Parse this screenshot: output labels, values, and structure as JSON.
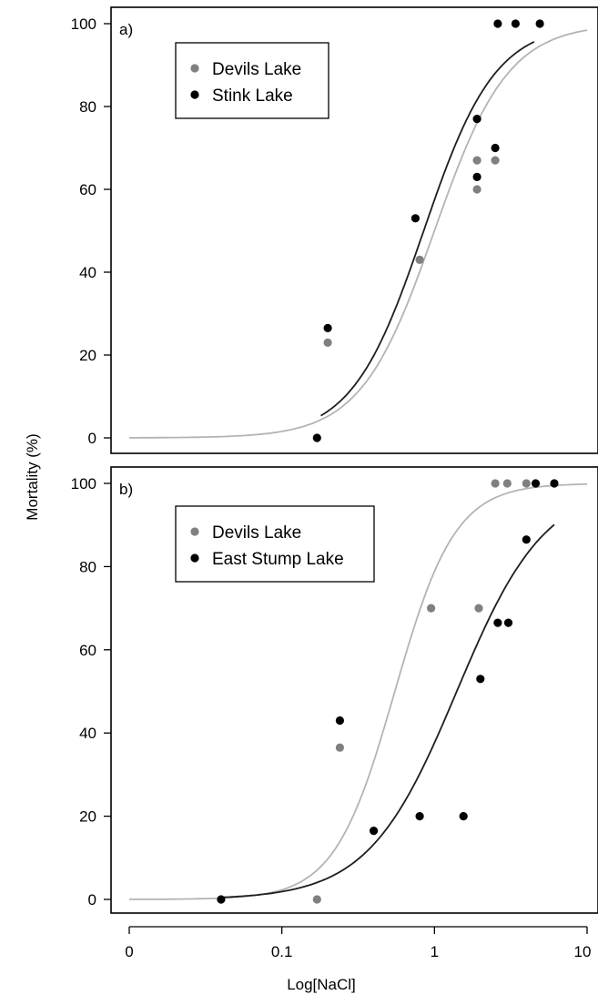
{
  "colors": {
    "devils": "#808080",
    "other": "#000000",
    "devils_curve": "#b4b4b4",
    "other_curve": "#1e1e1e"
  },
  "axes": {
    "ylabel": "Mortality (%)",
    "xlabel": "Log[NaCl]"
  },
  "chart_data": [
    {
      "type": "scatter",
      "panel_label": "a)",
      "x_scale": "log",
      "x_ticks": [
        0,
        0.1,
        1,
        10
      ],
      "x_tick_labels": [
        "0",
        "0.1",
        "1",
        "10"
      ],
      "y_ticks": [
        0,
        20,
        40,
        60,
        80,
        100
      ],
      "y_tick_labels": [
        "0",
        "20",
        "40",
        "60",
        "80",
        "100"
      ],
      "ylim": [
        -4,
        104
      ],
      "legend_position": "top-left",
      "series": [
        {
          "name": "Devils Lake",
          "color": "#808080",
          "points": [
            [
              0.2,
              23
            ],
            [
              0.8,
              43
            ],
            [
              1.9,
              60
            ],
            [
              1.9,
              67
            ],
            [
              2.5,
              67
            ]
          ],
          "curve": {
            "x_range": [
              0.01,
              10
            ],
            "ec50": 1.0,
            "slope": 1.8,
            "max": 100
          }
        },
        {
          "name": "Stink Lake",
          "color": "#000000",
          "points": [
            [
              0.17,
              0
            ],
            [
              0.2,
              26.5
            ],
            [
              0.75,
              53
            ],
            [
              1.9,
              63
            ],
            [
              1.9,
              77
            ],
            [
              2.5,
              70
            ],
            [
              2.6,
              100
            ],
            [
              3.4,
              100
            ],
            [
              4.9,
              100
            ]
          ],
          "curve": {
            "x_range": [
              0.18,
              4.5
            ],
            "ec50": 0.85,
            "slope": 1.85,
            "max": 100
          }
        }
      ]
    },
    {
      "type": "scatter",
      "panel_label": "b)",
      "x_scale": "log",
      "x_ticks": [
        0,
        0.1,
        1,
        10
      ],
      "x_tick_labels": [
        "0",
        "0.1",
        "1",
        "10"
      ],
      "y_ticks": [
        0,
        20,
        40,
        60,
        80,
        100
      ],
      "y_tick_labels": [
        "0",
        "20",
        "40",
        "60",
        "80",
        "100"
      ],
      "ylim": [
        -4,
        104
      ],
      "legend_position": "top-left",
      "series": [
        {
          "name": "Devils Lake",
          "color": "#808080",
          "points": [
            [
              0.17,
              0
            ],
            [
              0.24,
              36.5
            ],
            [
              0.95,
              70
            ],
            [
              1.95,
              70
            ],
            [
              2.5,
              100
            ],
            [
              3.0,
              100
            ],
            [
              4.0,
              100
            ]
          ],
          "curve": {
            "x_range": [
              0.01,
              10
            ],
            "ec50": 0.55,
            "slope": 2.2,
            "max": 100
          }
        },
        {
          "name": "East Stump Lake",
          "color": "#000000",
          "points": [
            [
              0.04,
              0
            ],
            [
              0.24,
              43
            ],
            [
              0.4,
              16.5
            ],
            [
              0.8,
              20
            ],
            [
              1.55,
              20
            ],
            [
              2.0,
              53
            ],
            [
              2.6,
              66.5
            ],
            [
              3.05,
              66.5
            ],
            [
              4.0,
              86.5
            ],
            [
              4.6,
              100
            ],
            [
              6.1,
              100
            ]
          ],
          "curve": {
            "x_range": [
              0.04,
              6.1
            ],
            "ec50": 1.4,
            "slope": 1.5,
            "max": 100
          }
        }
      ]
    }
  ]
}
